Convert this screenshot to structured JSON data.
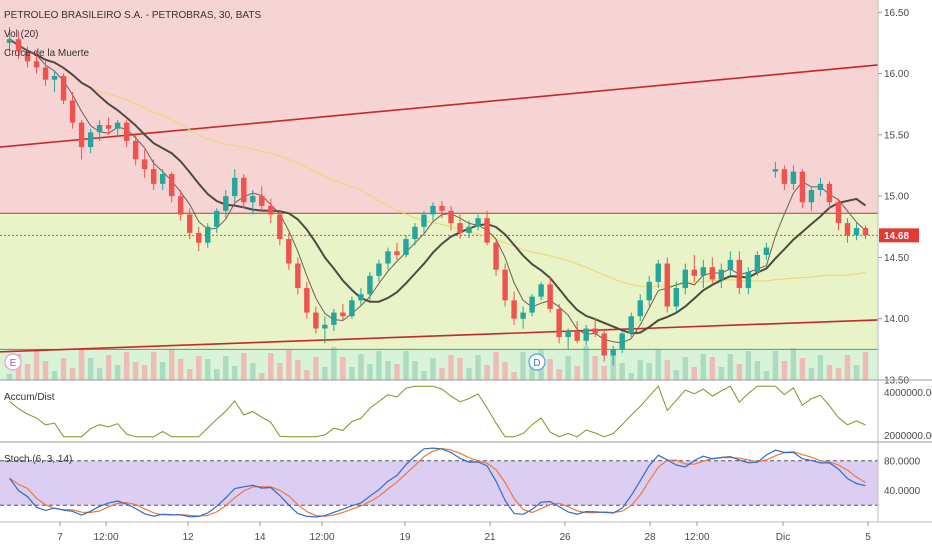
{
  "chart_data": {
    "type": "candlestick",
    "title": "PETROLEO BRASILEIRO S.A. - PETROBRAS, 30, BATS",
    "legend": {
      "indicator_1": "Vol (20)",
      "indicator_2": "Cruce de la Muerte"
    },
    "x_ticks": [
      "7",
      "12:00",
      "12",
      "14",
      "12:00",
      "19",
      "21",
      "26",
      "28",
      "12:00",
      "Dic",
      "5"
    ],
    "price_axis": {
      "ticks": [
        "16.50",
        "16.00",
        "15.50",
        "15.00",
        "14.50",
        "14.00",
        "13.50"
      ],
      "range": [
        13.5,
        16.6
      ],
      "last_price": "14.68"
    },
    "horizontal_levels": [
      14.86,
      14.68,
      13.75
    ],
    "trendlines": [
      {
        "from": 15.4,
        "to": 16.07
      },
      {
        "from": 13.73,
        "to": 13.99
      }
    ],
    "zones": [
      {
        "from": 14.86,
        "to": 16.6,
        "color": "#f7d4d4"
      },
      {
        "from": 13.75,
        "to": 14.86,
        "color": "#e8f3c8"
      },
      {
        "from": 13.5,
        "to": 13.75,
        "color": "#d8f3d8"
      }
    ],
    "events": [
      "E",
      "D"
    ],
    "candles": [
      [
        16.25,
        16.38,
        16.15,
        16.28
      ],
      [
        16.28,
        16.35,
        16.12,
        16.18
      ],
      [
        16.18,
        16.22,
        16.05,
        16.1
      ],
      [
        16.1,
        16.18,
        16.0,
        16.05
      ],
      [
        16.05,
        16.1,
        15.9,
        15.95
      ],
      [
        15.95,
        16.02,
        15.85,
        15.98
      ],
      [
        15.98,
        16.0,
        15.75,
        15.78
      ],
      [
        15.78,
        15.85,
        15.55,
        15.6
      ],
      [
        15.6,
        15.62,
        15.3,
        15.4
      ],
      [
        15.4,
        15.55,
        15.35,
        15.52
      ],
      [
        15.52,
        15.62,
        15.45,
        15.58
      ],
      [
        15.58,
        15.64,
        15.5,
        15.55
      ],
      [
        15.55,
        15.62,
        15.48,
        15.6
      ],
      [
        15.6,
        15.62,
        15.4,
        15.45
      ],
      [
        15.45,
        15.5,
        15.25,
        15.3
      ],
      [
        15.3,
        15.38,
        15.15,
        15.22
      ],
      [
        15.22,
        15.3,
        15.05,
        15.1
      ],
      [
        15.1,
        15.22,
        15.05,
        15.18
      ],
      [
        15.18,
        15.2,
        14.95,
        15.0
      ],
      [
        15.0,
        15.05,
        14.8,
        14.85
      ],
      [
        14.85,
        14.9,
        14.65,
        14.7
      ],
      [
        14.7,
        14.75,
        14.55,
        14.62
      ],
      [
        14.62,
        14.78,
        14.58,
        14.75
      ],
      [
        14.75,
        14.9,
        14.7,
        14.88
      ],
      [
        14.88,
        15.05,
        14.82,
        15.0
      ],
      [
        15.0,
        15.22,
        14.95,
        15.15
      ],
      [
        15.15,
        15.18,
        14.9,
        14.95
      ],
      [
        14.95,
        15.05,
        14.85,
        15.0
      ],
      [
        15.0,
        15.08,
        14.88,
        14.92
      ],
      [
        14.92,
        14.98,
        14.78,
        14.85
      ],
      [
        14.85,
        14.88,
        14.6,
        14.65
      ],
      [
        14.65,
        14.7,
        14.4,
        14.45
      ],
      [
        14.45,
        14.5,
        14.2,
        14.25
      ],
      [
        14.25,
        14.3,
        14.0,
        14.05
      ],
      [
        14.05,
        14.1,
        13.88,
        13.92
      ],
      [
        13.92,
        14.02,
        13.8,
        13.95
      ],
      [
        13.95,
        14.08,
        13.9,
        14.05
      ],
      [
        14.05,
        14.12,
        13.98,
        14.02
      ],
      [
        14.02,
        14.18,
        14.0,
        14.15
      ],
      [
        14.15,
        14.25,
        14.1,
        14.2
      ],
      [
        14.2,
        14.38,
        14.15,
        14.35
      ],
      [
        14.35,
        14.48,
        14.3,
        14.45
      ],
      [
        14.45,
        14.58,
        14.4,
        14.55
      ],
      [
        14.55,
        14.62,
        14.48,
        14.52
      ],
      [
        14.52,
        14.68,
        14.5,
        14.65
      ],
      [
        14.65,
        14.78,
        14.6,
        14.75
      ],
      [
        14.75,
        14.88,
        14.7,
        14.85
      ],
      [
        14.85,
        14.95,
        14.8,
        14.92
      ],
      [
        14.92,
        14.96,
        14.82,
        14.88
      ],
      [
        14.88,
        14.92,
        14.72,
        14.78
      ],
      [
        14.78,
        14.85,
        14.65,
        14.7
      ],
      [
        14.7,
        14.8,
        14.66,
        14.75
      ],
      [
        14.75,
        14.85,
        14.72,
        14.82
      ],
      [
        14.82,
        14.88,
        14.6,
        14.62
      ],
      [
        14.62,
        14.65,
        14.35,
        14.4
      ],
      [
        14.4,
        14.45,
        14.1,
        14.15
      ],
      [
        14.15,
        14.22,
        13.95,
        14.0
      ],
      [
        14.0,
        14.1,
        13.92,
        14.05
      ],
      [
        14.05,
        14.2,
        14.02,
        14.18
      ],
      [
        14.18,
        14.3,
        14.15,
        14.28
      ],
      [
        14.28,
        14.35,
        14.05,
        14.08
      ],
      [
        14.08,
        14.12,
        13.8,
        13.85
      ],
      [
        13.85,
        13.92,
        13.75,
        13.9
      ],
      [
        13.9,
        13.98,
        13.8,
        13.82
      ],
      [
        13.82,
        13.95,
        13.78,
        13.92
      ],
      [
        13.92,
        14.0,
        13.85,
        13.88
      ],
      [
        13.88,
        13.92,
        13.65,
        13.7
      ],
      [
        13.7,
        13.78,
        13.62,
        13.75
      ],
      [
        13.75,
        13.9,
        13.72,
        13.88
      ],
      [
        13.88,
        14.05,
        13.85,
        14.02
      ],
      [
        14.02,
        14.2,
        13.98,
        14.15
      ],
      [
        14.15,
        14.35,
        14.1,
        14.3
      ],
      [
        14.3,
        14.48,
        14.25,
        14.45
      ],
      [
        14.45,
        14.5,
        14.05,
        14.1
      ],
      [
        14.1,
        14.3,
        14.05,
        14.25
      ],
      [
        14.25,
        14.45,
        14.2,
        14.4
      ],
      [
        14.4,
        14.52,
        14.3,
        14.35
      ],
      [
        14.35,
        14.48,
        14.25,
        14.42
      ],
      [
        14.42,
        14.5,
        14.28,
        14.32
      ],
      [
        14.32,
        14.45,
        14.25,
        14.4
      ],
      [
        14.4,
        14.55,
        14.35,
        14.48
      ],
      [
        14.48,
        14.55,
        14.2,
        14.25
      ],
      [
        14.25,
        14.42,
        14.2,
        14.38
      ],
      [
        14.38,
        14.55,
        14.35,
        14.52
      ],
      [
        14.52,
        14.62,
        14.48,
        14.58
      ],
      [
        15.2,
        15.28,
        15.15,
        15.22
      ],
      [
        15.22,
        15.25,
        15.05,
        15.1
      ],
      [
        15.1,
        15.25,
        15.05,
        15.2
      ],
      [
        15.2,
        15.22,
        14.9,
        14.95
      ],
      [
        14.95,
        15.08,
        14.88,
        15.05
      ],
      [
        15.05,
        15.15,
        15.0,
        15.1
      ],
      [
        15.1,
        15.12,
        14.9,
        14.95
      ],
      [
        14.95,
        14.98,
        14.72,
        14.78
      ],
      [
        14.78,
        14.82,
        14.62,
        14.68
      ],
      [
        14.68,
        14.78,
        14.64,
        14.74
      ],
      [
        14.74,
        14.76,
        14.65,
        14.68
      ]
    ],
    "sub_panels": [
      {
        "name": "Accum/Dist",
        "ticks": [
          "4000000.0000",
          "2000000.0000"
        ],
        "range": [
          1800000,
          4400000
        ]
      },
      {
        "name": "Stoch (6, 3, 14)",
        "ticks": [
          "80.0000",
          "40.0000"
        ],
        "range": [
          0,
          100
        ],
        "upper_band": 80,
        "lower_band": 20
      }
    ]
  }
}
